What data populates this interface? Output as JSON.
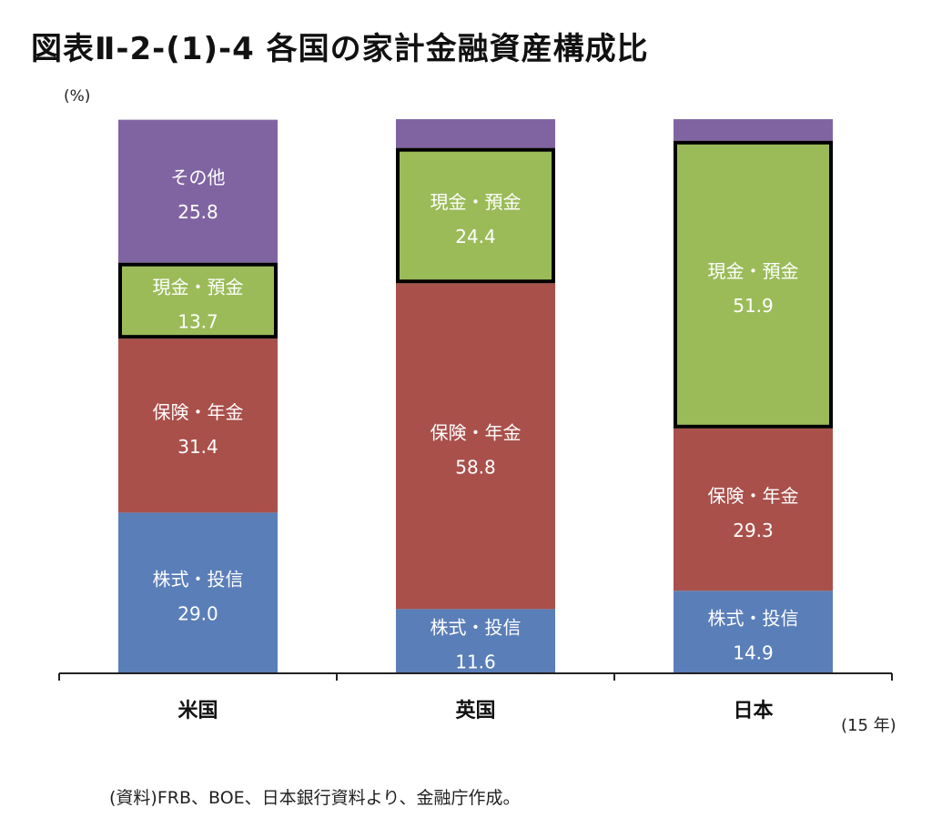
{
  "chart_data": {
    "type": "bar",
    "stacked": true,
    "title": "図表Ⅱ-2-(1)-4 各国の家計金融資産構成比",
    "ylabel": "(%)",
    "xlabel": "",
    "note": "(15 年)",
    "source": "(資料)FRB、BOE、日本銀行資料より、金融庁作成。",
    "ylim": [
      0,
      100
    ],
    "categories": [
      "米国",
      "英国",
      "日本"
    ],
    "series": [
      {
        "name": "株式・投信",
        "color": "#5A7EB8",
        "values": [
          29.0,
          11.6,
          14.9
        ],
        "labeled": [
          true,
          true,
          true
        ]
      },
      {
        "name": "保険・年金",
        "color": "#A9504B",
        "values": [
          31.4,
          58.8,
          29.3
        ],
        "labeled": [
          true,
          true,
          true
        ]
      },
      {
        "name": "現金・預金",
        "color": "#9BBB59",
        "values": [
          13.7,
          24.4,
          51.9
        ],
        "labeled": [
          true,
          true,
          true
        ],
        "highlighted": true
      },
      {
        "name": "その他",
        "color": "#8064A2",
        "values": [
          25.8,
          5.2,
          3.9
        ],
        "labeled": [
          true,
          false,
          false
        ]
      }
    ]
  }
}
